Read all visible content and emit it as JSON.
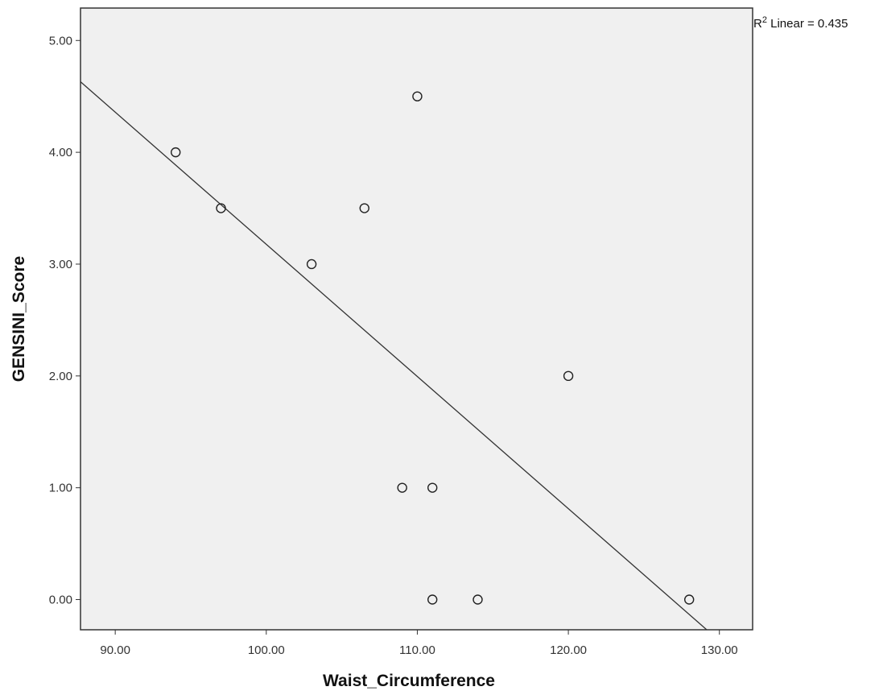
{
  "chart_data": {
    "type": "scatter",
    "title": "",
    "xlabel": "Waist_Circumference",
    "ylabel": "GENSINI_Score",
    "xlim": [
      87.7,
      132.2
    ],
    "ylim": [
      -0.27,
      5.29
    ],
    "x_ticks": [
      {
        "value": 90,
        "label": "90.00"
      },
      {
        "value": 100,
        "label": "100.00"
      },
      {
        "value": 110,
        "label": "110.00"
      },
      {
        "value": 120,
        "label": "120.00"
      },
      {
        "value": 130,
        "label": "130.00"
      }
    ],
    "y_ticks": [
      {
        "value": 0,
        "label": "0.00"
      },
      {
        "value": 1,
        "label": "1.00"
      },
      {
        "value": 2,
        "label": "2.00"
      },
      {
        "value": 3,
        "label": "3.00"
      },
      {
        "value": 4,
        "label": "4.00"
      },
      {
        "value": 5,
        "label": "5.00"
      }
    ],
    "points": [
      {
        "x": 94,
        "y": 4.0
      },
      {
        "x": 97,
        "y": 3.5
      },
      {
        "x": 103,
        "y": 3.0
      },
      {
        "x": 106.5,
        "y": 3.5
      },
      {
        "x": 110,
        "y": 4.5
      },
      {
        "x": 109,
        "y": 1.0
      },
      {
        "x": 111,
        "y": 1.0
      },
      {
        "x": 111,
        "y": 0.0
      },
      {
        "x": 114,
        "y": 0.0
      },
      {
        "x": 120,
        "y": 2.0
      },
      {
        "x": 128,
        "y": 0.0
      }
    ],
    "fit_line": {
      "type": "linear",
      "slope": -0.1182,
      "intercept": 14.997
    },
    "annotation": {
      "prefix": "R",
      "superscript": "2",
      "text": " Linear = 0.435"
    },
    "grid": false,
    "colors": {
      "plot_background": "#f0f0f0",
      "frame": "#333333",
      "line": "#333333",
      "marker": "#222222"
    }
  }
}
